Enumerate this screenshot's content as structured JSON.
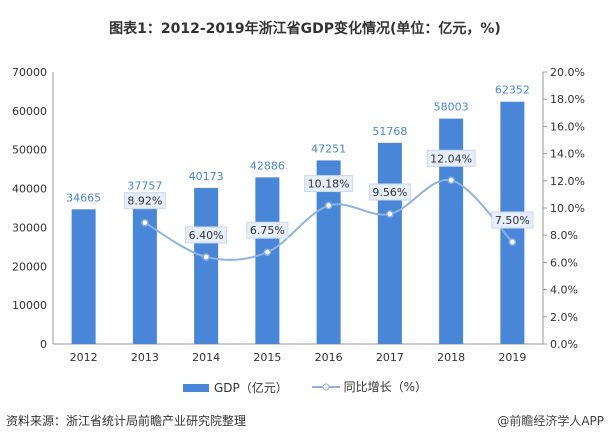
{
  "title": "图表1：2012-2019年浙江省GDP变化情况(单位：亿元，%)",
  "chart_data": {
    "type": "bar+line",
    "title": "图表1：2012-2019年浙江省GDP变化情况(单位：亿元，%)",
    "categories": [
      "2012",
      "2013",
      "2014",
      "2015",
      "2016",
      "2017",
      "2018",
      "2019"
    ],
    "series": [
      {
        "name": "GDP（亿元）",
        "type": "bar",
        "axis": "left",
        "values": [
          34665,
          37757,
          40173,
          42886,
          47251,
          51768,
          58003,
          62352
        ],
        "labels": [
          "34665",
          "37757",
          "40173",
          "42886",
          "47251",
          "51768",
          "58003",
          "62352"
        ],
        "color": "#4a86d8"
      },
      {
        "name": "同比增长（%）",
        "type": "line",
        "axis": "right",
        "values": [
          null,
          8.92,
          6.4,
          6.75,
          10.18,
          9.56,
          12.04,
          7.5
        ],
        "labels": [
          "",
          "8.92%",
          "6.40%",
          "6.75%",
          "10.18%",
          "9.56%",
          "12.04%",
          "7.50%"
        ],
        "color": "#8db3e2"
      }
    ],
    "left_axis": {
      "ylim": [
        0,
        70000
      ],
      "ticks": [
        "0",
        "10000",
        "20000",
        "30000",
        "40000",
        "50000",
        "60000",
        "70000"
      ]
    },
    "right_axis": {
      "ylim": [
        0,
        20
      ],
      "ticks": [
        "0.0%",
        "2.0%",
        "4.0%",
        "6.0%",
        "8.0%",
        "10.0%",
        "12.0%",
        "14.0%",
        "16.0%",
        "18.0%",
        "20.0%"
      ]
    },
    "grid": false,
    "legend": "bottom"
  },
  "source": "资料来源：浙江省统计局前瞻产业研究院整理",
  "brand": "@前瞻经济学人APP"
}
